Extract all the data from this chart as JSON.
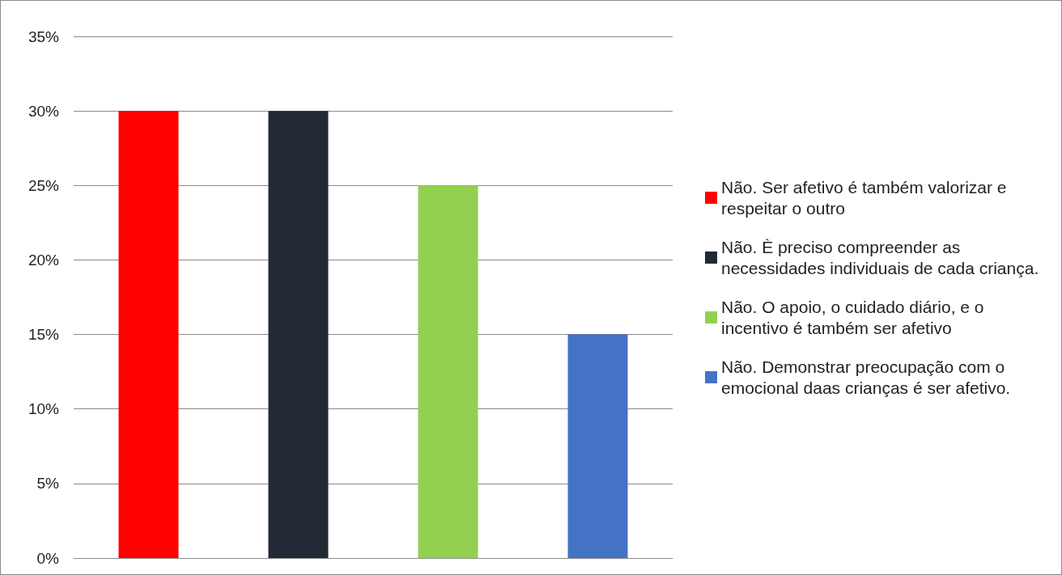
{
  "chart_data": {
    "type": "bar",
    "categories": [
      null,
      null,
      null,
      null
    ],
    "series": [
      {
        "name": "Não. Ser afetivo é também valorizar e respeitar o outro",
        "color": "#ff0000",
        "values": [
          30,
          null,
          null,
          null
        ]
      },
      {
        "name": "Não. È preciso compreender as necessidades individuais de cada criança.",
        "color": "#222a35",
        "values": [
          null,
          30,
          null,
          null
        ]
      },
      {
        "name": "Não. O apoio, o cuidado diário, e o incentivo é também ser afetivo",
        "color": "#92d050",
        "values": [
          null,
          null,
          25,
          null
        ]
      },
      {
        "name": "Não. Demonstrar preocupação com o emocional daas crianças é ser afetivo.",
        "color": "#4472c4",
        "values": [
          null,
          null,
          null,
          15
        ]
      }
    ],
    "ylim": [
      0,
      35
    ],
    "yticks": [
      {
        "value": 0,
        "label": "0%"
      },
      {
        "value": 5,
        "label": "5%"
      },
      {
        "value": 10,
        "label": "10%"
      },
      {
        "value": 15,
        "label": "15%"
      },
      {
        "value": 20,
        "label": "20%"
      },
      {
        "value": 25,
        "label": "25%"
      },
      {
        "value": 30,
        "label": "30%"
      },
      {
        "value": 35,
        "label": "35%"
      }
    ],
    "grid": "y",
    "legend": "right"
  }
}
